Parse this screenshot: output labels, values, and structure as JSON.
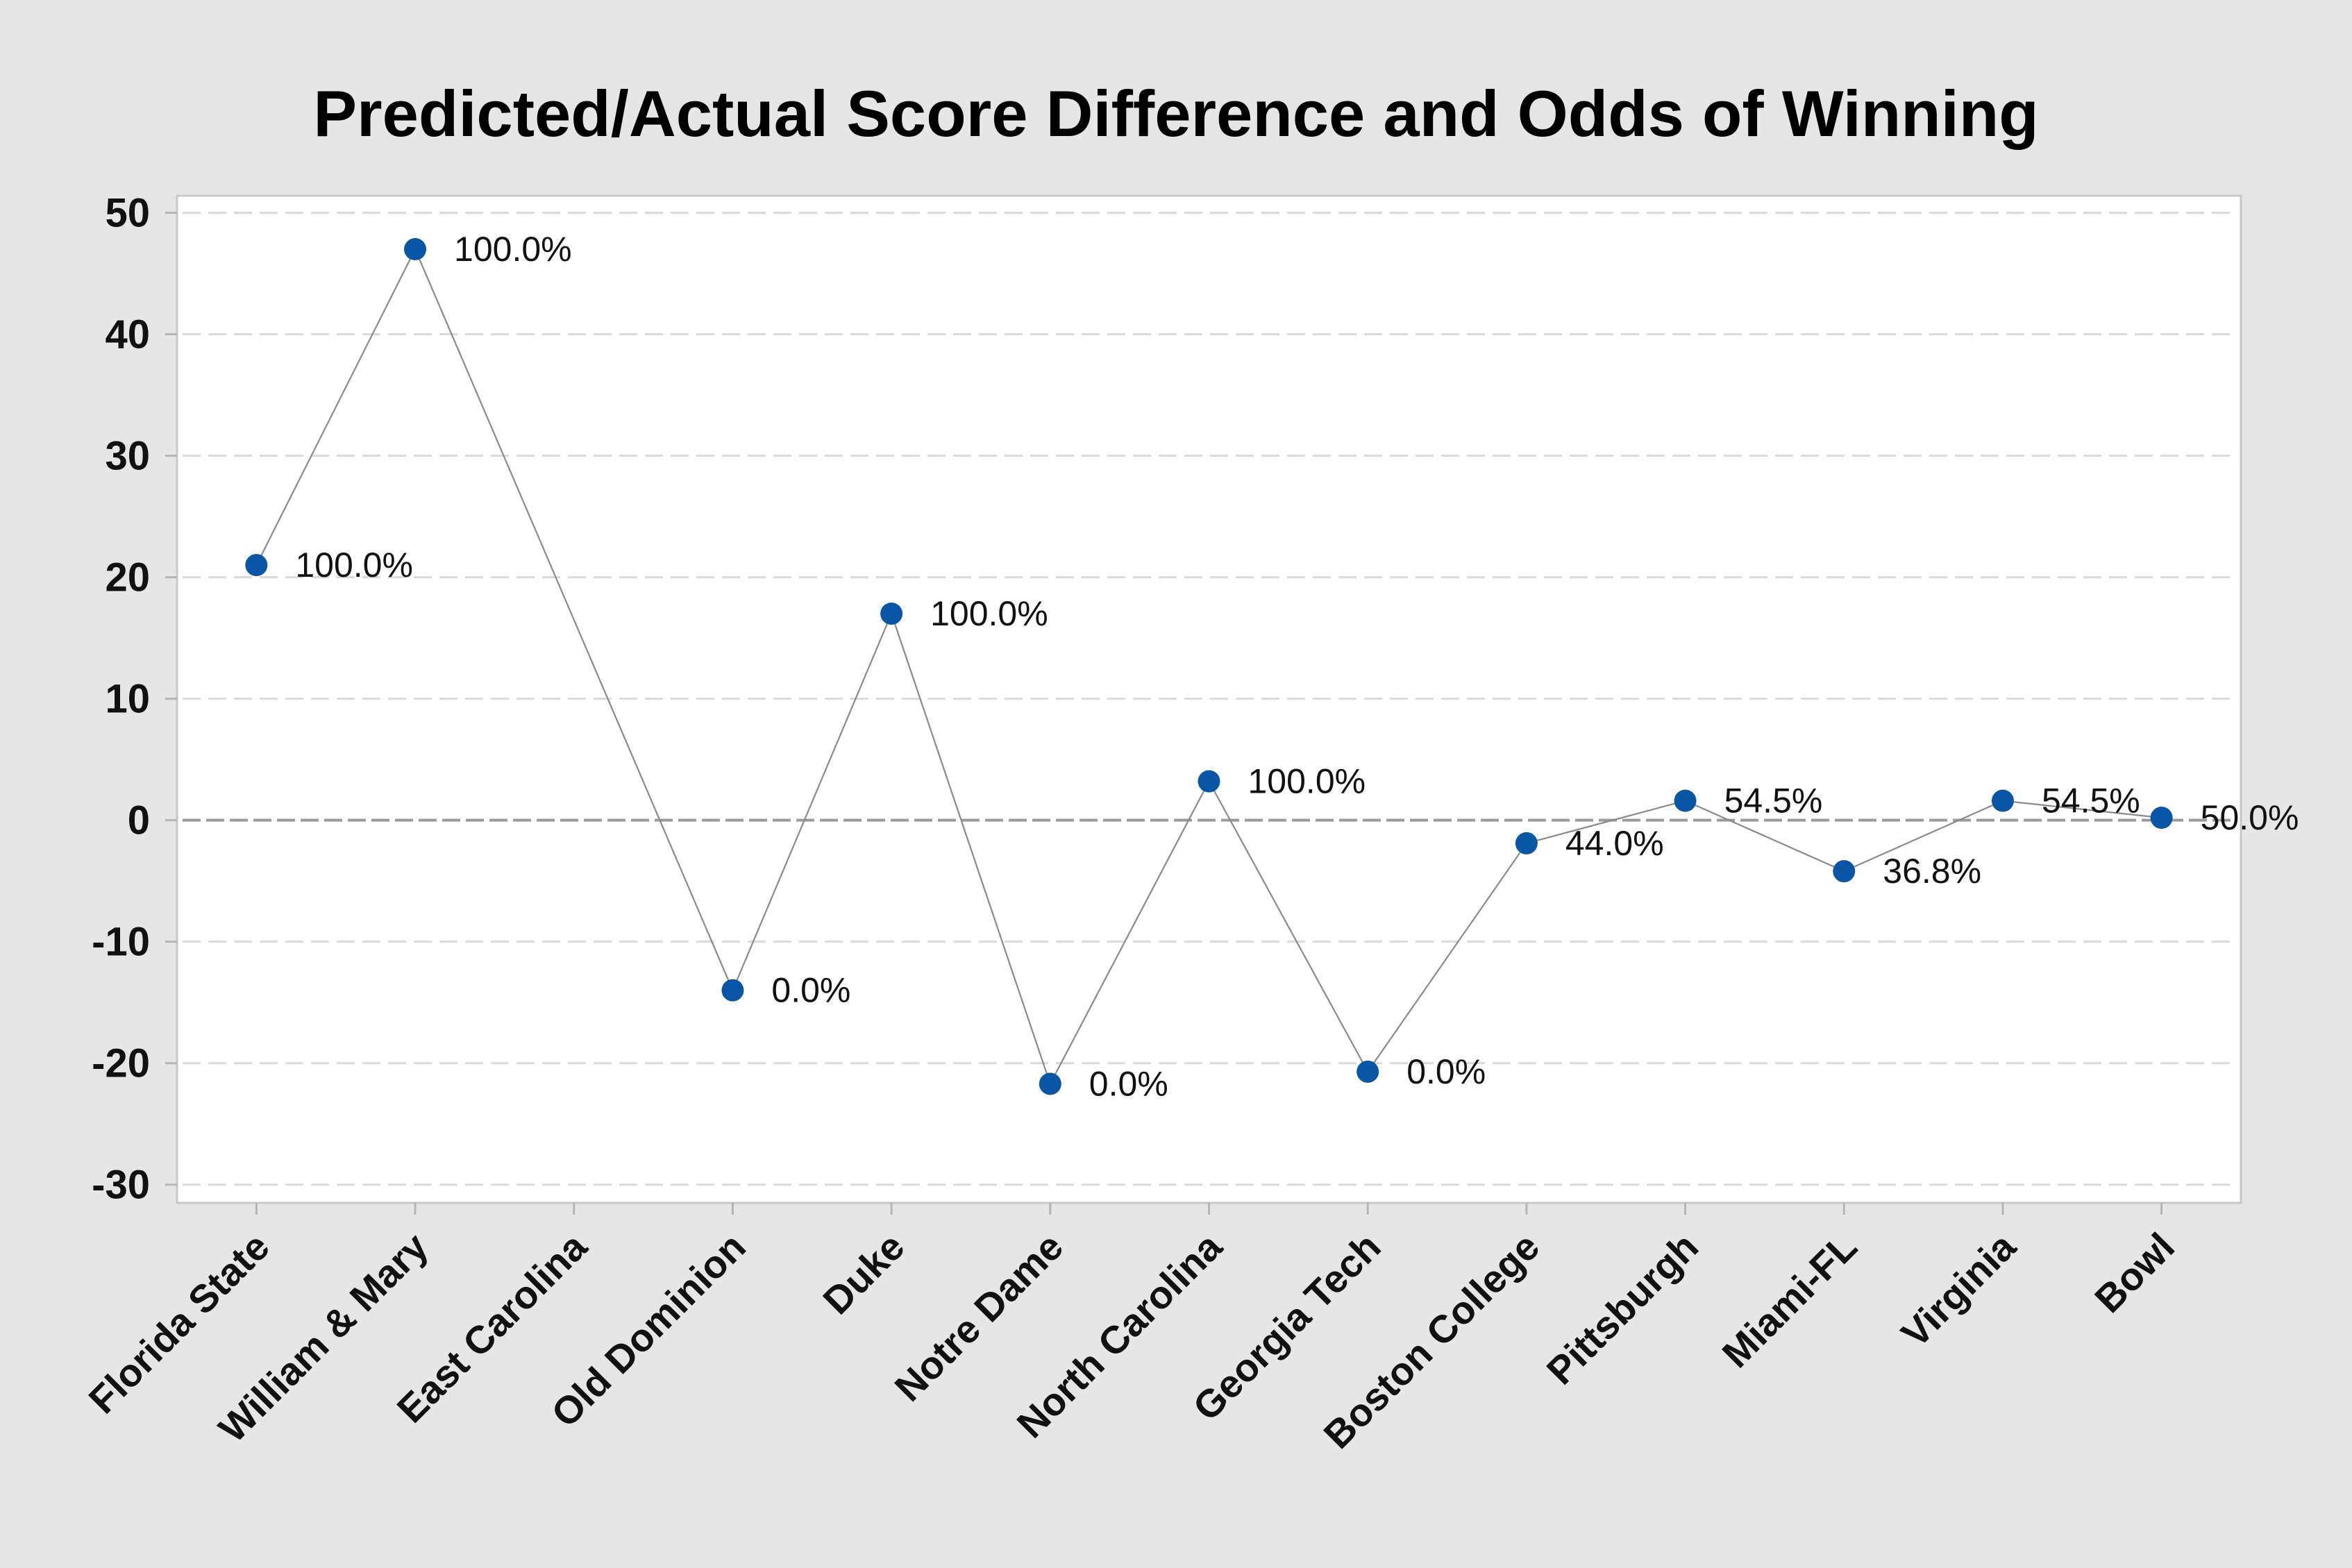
{
  "chart_data": {
    "type": "line",
    "title": "Predicted/Actual Score Difference and Odds of Winning",
    "categories": [
      "Florida State",
      "William & Mary",
      "East Carolina",
      "Old Dominion",
      "Duke",
      "Notre Dame",
      "North Carolina",
      "Georgia Tech",
      "Boston College",
      "Pittsburgh",
      "Miami-FL",
      "Virginia",
      "Bowl"
    ],
    "series": [
      {
        "values": [
          21,
          47,
          null,
          -14,
          17,
          -21.7,
          3.2,
          -20.7,
          -1.9,
          1.6,
          -4.2,
          1.6,
          0.2
        ],
        "labels": [
          "100.0%",
          "100.0%",
          null,
          "0.0%",
          "100.0%",
          "0.0%",
          "100.0%",
          "0.0%",
          "44.0%",
          "54.5%",
          "36.8%",
          "54.5%",
          "50.0%"
        ]
      }
    ],
    "yticks": [
      50,
      40,
      30,
      20,
      10,
      0,
      -10,
      -20,
      -30
    ],
    "ylim": [
      -31.5,
      51.4
    ],
    "reference_line": 0,
    "grid": true,
    "legend": "none",
    "colors": {
      "marker": "#0a56a6",
      "line": "#8a8a8a",
      "grid": "#d9d9d9",
      "reference_line": "#9a9a9a",
      "background": "#e6e6e6",
      "plot_background": "#ffffff"
    }
  }
}
